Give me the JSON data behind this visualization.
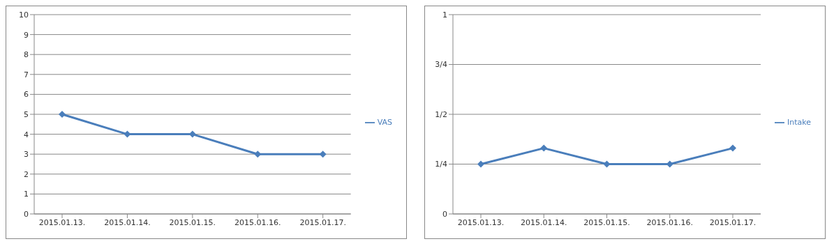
{
  "chart_data": [
    {
      "type": "line",
      "categories": [
        "2015.01.13.",
        "2015.01.14.",
        "2015.01.15.",
        "2015.01.16.",
        "2015.01.17."
      ],
      "series": [
        {
          "name": "VAS",
          "color": "#4a7ebb",
          "values": [
            5,
            4,
            4,
            3,
            3
          ]
        }
      ],
      "ylim": [
        0,
        10
      ],
      "yticks": [
        0,
        1,
        2,
        3,
        4,
        5,
        6,
        7,
        8,
        9,
        10
      ],
      "grid": "y",
      "legend": "right",
      "marker": "diamond",
      "line_style": "solid"
    },
    {
      "type": "line",
      "categories": [
        "2015.01.13.",
        "2015.01.14.",
        "2015.01.15.",
        "2015.01.16.",
        "2015.01.17."
      ],
      "series": [
        {
          "name": "Intake",
          "color": "#4a7ebb",
          "values": [
            0.25,
            0.33,
            0.25,
            0.25,
            0.33
          ]
        }
      ],
      "ylim": [
        0,
        1
      ],
      "yticks": [
        0,
        {
          "value": 0.25,
          "label": "1/4"
        },
        {
          "value": 0.5,
          "label": "1/2"
        },
        {
          "value": 0.75,
          "label": "3/4"
        },
        1
      ],
      "grid": "y",
      "legend": "right",
      "marker": "diamond",
      "line_style": "solid"
    }
  ]
}
